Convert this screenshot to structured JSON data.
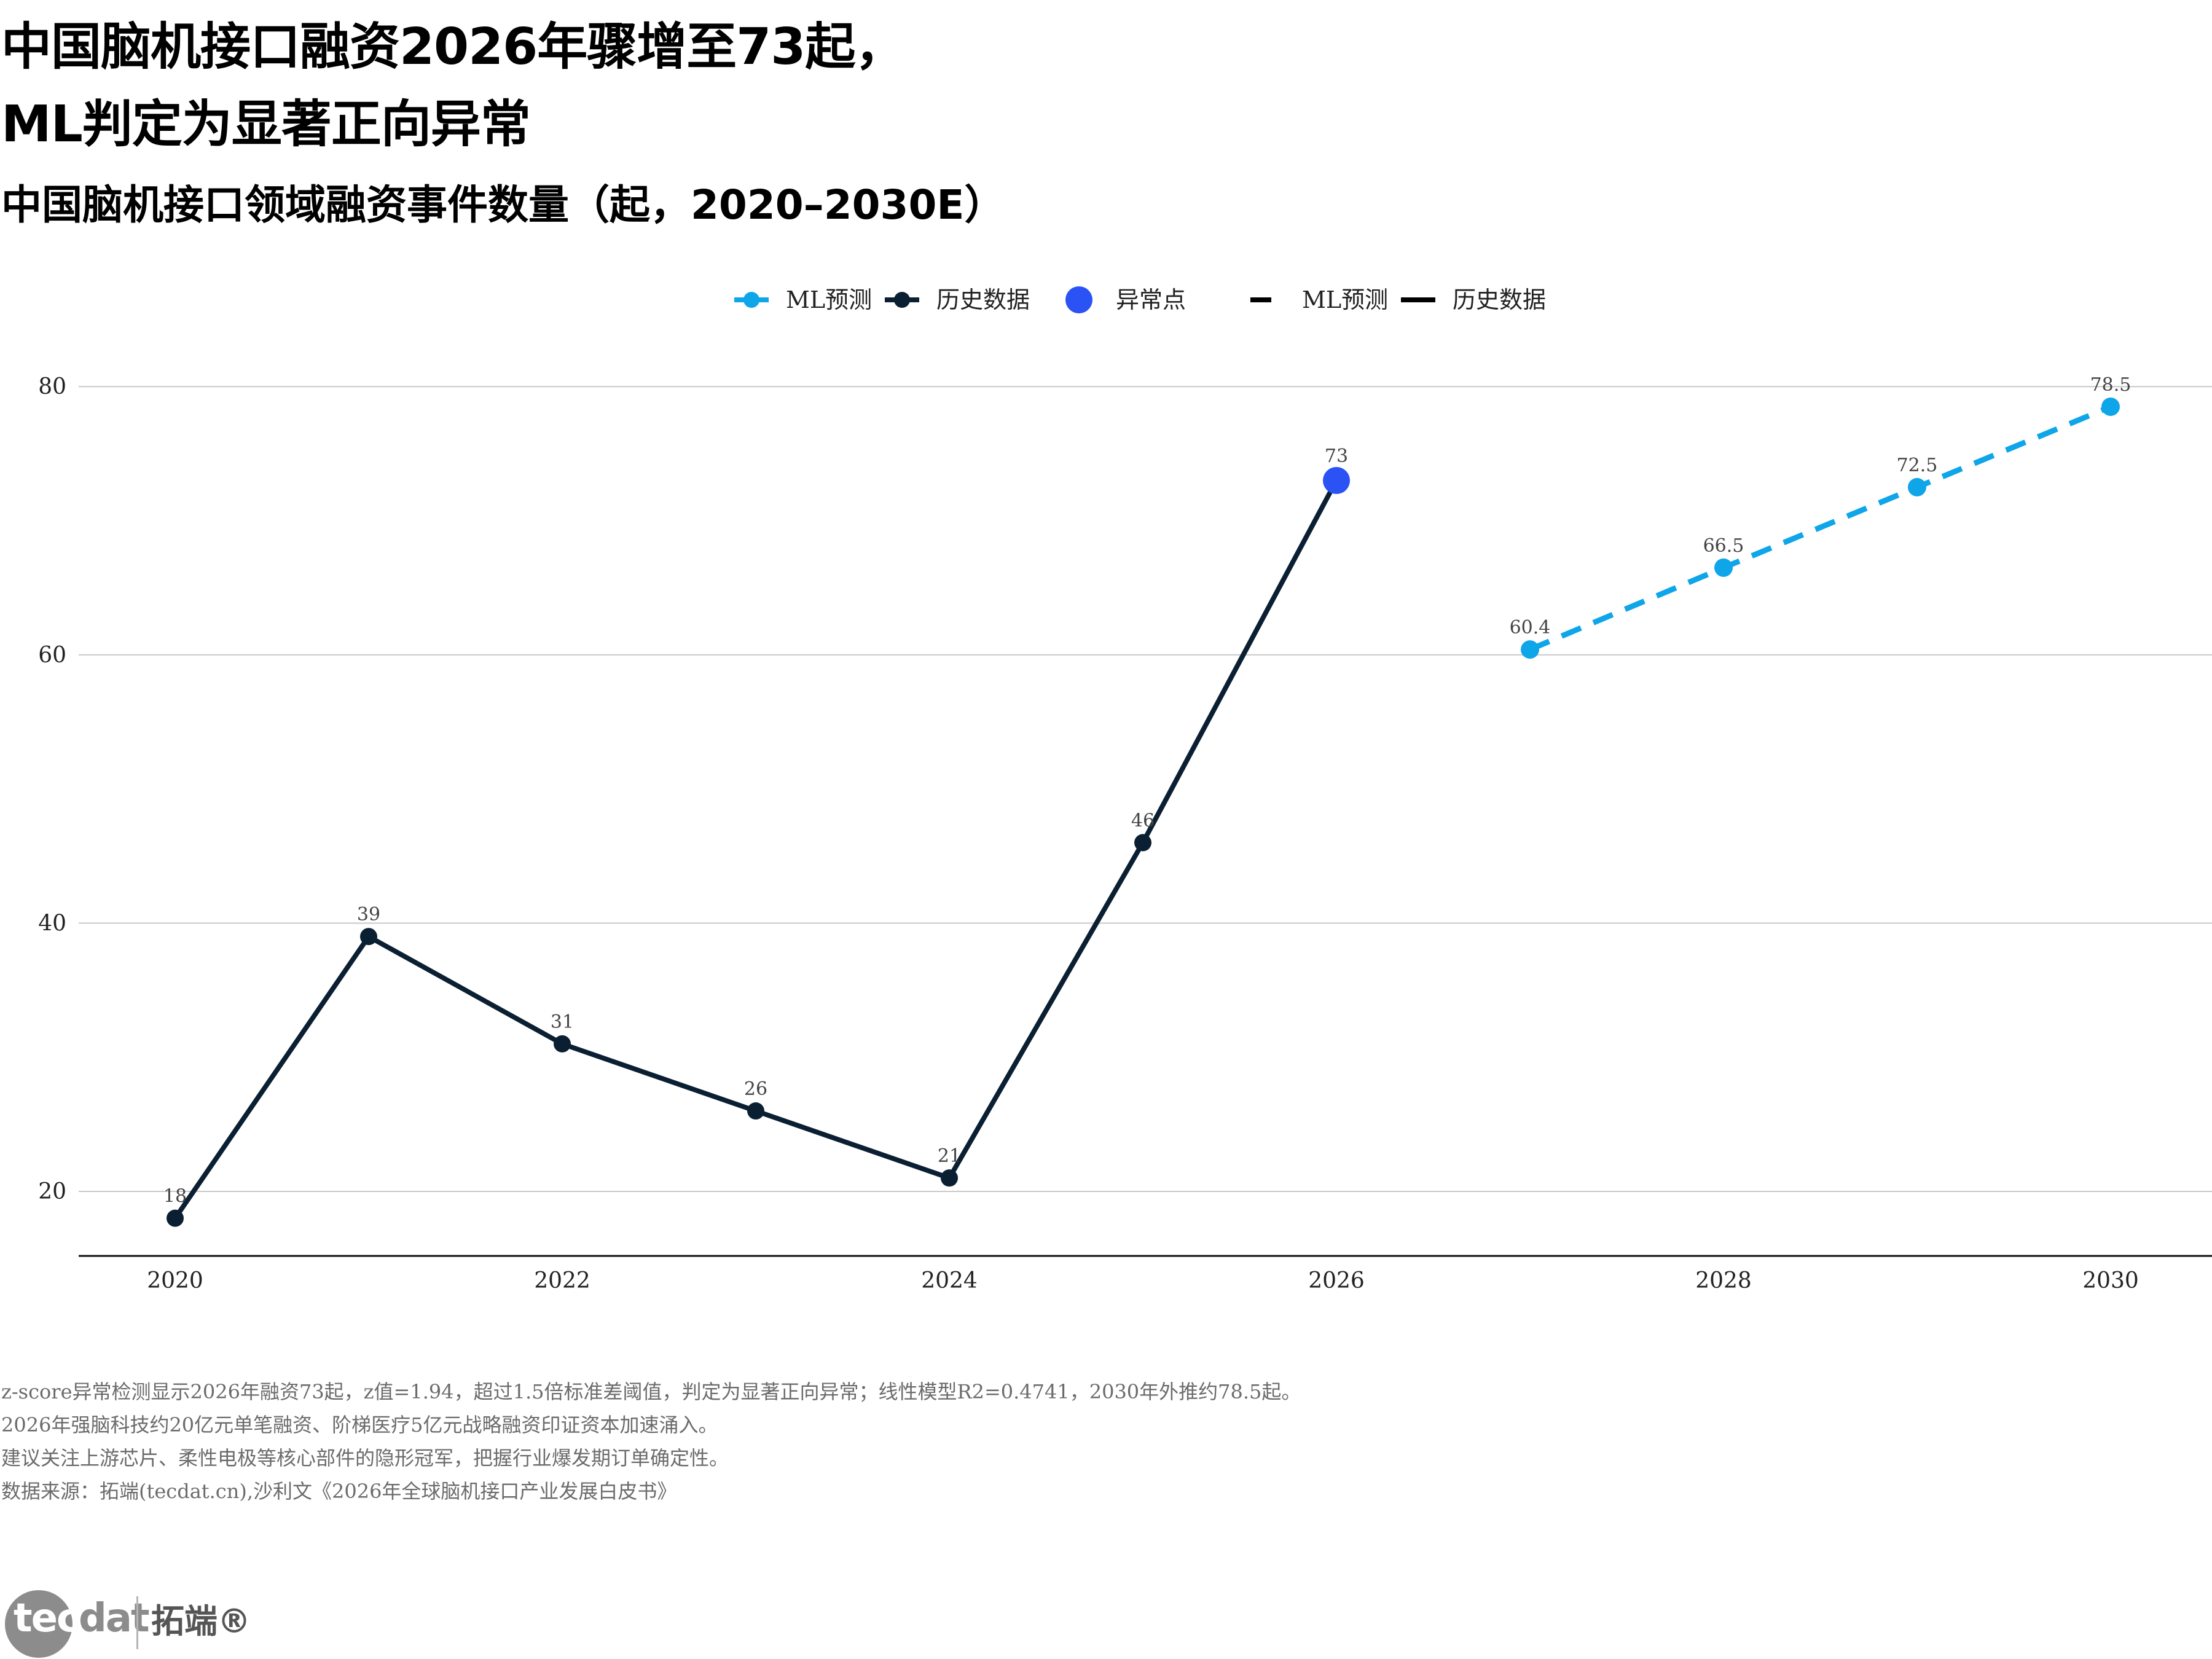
{
  "headline": {
    "line1": "中国脑机接口融资2026年骤增至73起，",
    "line2": "ML判定为显著正向异常"
  },
  "subtitle": "中国脑机接口领域融资事件数量（起，2020–2030E）",
  "legend": [
    {
      "label": "ML预测",
      "kind": "marker-line",
      "color": "#0ea5e9"
    },
    {
      "label": "历史数据",
      "kind": "marker-line",
      "color": "#0b1f33"
    },
    {
      "label": "异常点",
      "kind": "marker",
      "color": "#2a52f5"
    },
    {
      "label": "ML预测",
      "kind": "dash",
      "color": "#000000"
    },
    {
      "label": "历史数据",
      "kind": "solid",
      "color": "#000000"
    }
  ],
  "chart_data": {
    "type": "line",
    "x_ticks": [
      "2020",
      "2022",
      "2024",
      "2026",
      "2028",
      "2030"
    ],
    "y_ticks": [
      "20",
      "40",
      "60",
      "80"
    ],
    "xlim": [
      2019.5,
      2030.5
    ],
    "ylim": [
      15,
      82
    ],
    "grid": "horizontal",
    "legend_position": "top-center",
    "series": [
      {
        "name": "历史数据",
        "color": "#0b1f33",
        "style": "solid",
        "x": [
          2020,
          2021,
          2022,
          2023,
          2024,
          2025
        ],
        "y": [
          18,
          39,
          31,
          26,
          21,
          46
        ],
        "labels": [
          "18",
          "39",
          "31",
          "26",
          "21",
          "46"
        ]
      },
      {
        "name": "ML预测",
        "color": "#0ea5e9",
        "style": "dashed",
        "x": [
          2027,
          2028,
          2029,
          2030
        ],
        "y": [
          60.4,
          66.5,
          72.5,
          78.5
        ],
        "labels": [
          "60.4",
          "66.5",
          "72.5",
          "78.5"
        ]
      }
    ],
    "anomaly": {
      "name": "异常点",
      "color": "#2a52f5",
      "x": 2026,
      "y": 73,
      "label": "73"
    }
  },
  "notes": [
    "z-score异常检测显示2026年融资73起，z值=1.94，超过1.5倍标准差阈值，判定为显著正向异常；线性模型R2=0.4741，2030年外推约78.5起。",
    "2026年强脑科技约20亿元单笔融资、阶梯医疗5亿元战略融资印证资本加速涌入。",
    "建议关注上游芯片、柔性电极等核心部件的隐形冠军，把握行业爆发期订单确定性。",
    "数据来源：拓端(tecdat.cn),沙利文《2026年全球脑机接口产业发展白皮书》"
  ],
  "brand": {
    "logo_text_head": "tec",
    "logo_text_tail": "dat",
    "name_cn": "拓端®"
  }
}
